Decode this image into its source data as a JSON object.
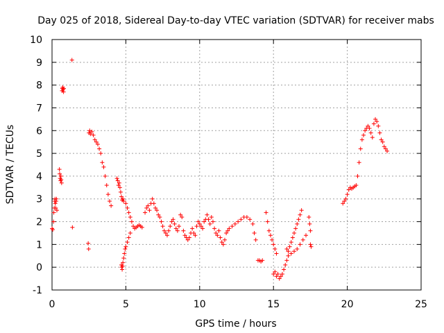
{
  "chart_data": {
    "type": "scatter",
    "title": "Day 025 of 2018, Sidereal Day-to-day VTEC variation (SDTVAR) for receiver mabs",
    "xlabel": "GPS time / hours",
    "ylabel": "SDTVAR / TECUs",
    "xlim": [
      0,
      25
    ],
    "ylim": [
      -1,
      10
    ],
    "xticks": [
      "0",
      "5",
      "10",
      "15",
      "20",
      "25"
    ],
    "yticks": [
      "-1",
      "0",
      "1",
      "2",
      "3",
      "4",
      "5",
      "6",
      "7",
      "8",
      "9",
      "10"
    ],
    "grid": true,
    "marker": "+",
    "color": "#ff0000",
    "series": [
      {
        "name": "SDTVAR",
        "points": [
          [
            0.0,
            1.7
          ],
          [
            0.05,
            1.65
          ],
          [
            0.1,
            2.0
          ],
          [
            0.12,
            2.4
          ],
          [
            0.15,
            2.6
          ],
          [
            0.18,
            2.9
          ],
          [
            0.2,
            3.0
          ],
          [
            0.22,
            2.8
          ],
          [
            0.25,
            2.6
          ],
          [
            0.28,
            2.9
          ],
          [
            0.3,
            3.0
          ],
          [
            0.33,
            2.5
          ],
          [
            0.5,
            4.3
          ],
          [
            0.52,
            4.1
          ],
          [
            0.55,
            3.9
          ],
          [
            0.58,
            3.8
          ],
          [
            0.6,
            4.0
          ],
          [
            0.62,
            3.85
          ],
          [
            0.65,
            3.7
          ],
          [
            0.68,
            7.75
          ],
          [
            0.7,
            7.85
          ],
          [
            0.72,
            7.9
          ],
          [
            0.75,
            7.8
          ],
          [
            0.78,
            7.7
          ],
          [
            0.8,
            7.85
          ],
          [
            1.35,
            9.1
          ],
          [
            1.38,
            1.75
          ],
          [
            2.45,
            1.05
          ],
          [
            2.48,
            0.8
          ],
          [
            2.5,
            5.9
          ],
          [
            2.55,
            6.0
          ],
          [
            2.6,
            5.85
          ],
          [
            2.7,
            5.95
          ],
          [
            2.8,
            5.8
          ],
          [
            2.9,
            5.6
          ],
          [
            3.0,
            5.5
          ],
          [
            3.1,
            5.4
          ],
          [
            3.2,
            5.2
          ],
          [
            3.3,
            5.0
          ],
          [
            3.4,
            4.6
          ],
          [
            3.5,
            4.4
          ],
          [
            3.6,
            4.0
          ],
          [
            3.7,
            3.6
          ],
          [
            3.8,
            3.2
          ],
          [
            3.9,
            2.9
          ],
          [
            4.0,
            2.7
          ],
          [
            4.4,
            3.9
          ],
          [
            4.45,
            3.8
          ],
          [
            4.5,
            3.6
          ],
          [
            4.55,
            3.7
          ],
          [
            4.6,
            3.5
          ],
          [
            4.65,
            3.3
          ],
          [
            4.7,
            3.1
          ],
          [
            4.75,
            2.95
          ],
          [
            4.8,
            3.0
          ],
          [
            4.85,
            2.9
          ],
          [
            4.7,
            0.1
          ],
          [
            4.72,
            0.0
          ],
          [
            4.75,
            -0.1
          ],
          [
            4.78,
            0.05
          ],
          [
            4.8,
            0.2
          ],
          [
            4.85,
            0.4
          ],
          [
            4.9,
            0.6
          ],
          [
            4.95,
            0.8
          ],
          [
            5.0,
            0.9
          ],
          [
            5.1,
            1.1
          ],
          [
            5.2,
            1.3
          ],
          [
            5.3,
            1.5
          ],
          [
            5.0,
            2.8
          ],
          [
            5.1,
            2.6
          ],
          [
            5.2,
            2.4
          ],
          [
            5.3,
            2.2
          ],
          [
            5.4,
            2.0
          ],
          [
            5.5,
            1.8
          ],
          [
            5.6,
            1.7
          ],
          [
            5.7,
            1.75
          ],
          [
            5.8,
            1.8
          ],
          [
            5.9,
            1.85
          ],
          [
            6.0,
            1.8
          ],
          [
            6.1,
            1.75
          ],
          [
            6.3,
            2.4
          ],
          [
            6.4,
            2.6
          ],
          [
            6.5,
            2.7
          ],
          [
            6.6,
            2.5
          ],
          [
            6.7,
            2.8
          ],
          [
            6.8,
            3.0
          ],
          [
            6.9,
            2.8
          ],
          [
            7.0,
            2.6
          ],
          [
            7.1,
            2.5
          ],
          [
            7.2,
            2.3
          ],
          [
            7.3,
            2.2
          ],
          [
            7.4,
            2.0
          ],
          [
            7.5,
            1.8
          ],
          [
            7.6,
            1.6
          ],
          [
            7.7,
            1.5
          ],
          [
            7.8,
            1.4
          ],
          [
            7.9,
            1.6
          ],
          [
            8.0,
            1.8
          ],
          [
            8.1,
            2.0
          ],
          [
            8.2,
            2.1
          ],
          [
            8.3,
            1.9
          ],
          [
            8.4,
            1.7
          ],
          [
            8.5,
            1.6
          ],
          [
            8.6,
            1.8
          ],
          [
            8.7,
            2.3
          ],
          [
            8.8,
            2.2
          ],
          [
            8.9,
            1.6
          ],
          [
            9.0,
            1.4
          ],
          [
            9.1,
            1.3
          ],
          [
            9.2,
            1.2
          ],
          [
            9.3,
            1.3
          ],
          [
            9.4,
            1.5
          ],
          [
            9.5,
            1.7
          ],
          [
            9.6,
            1.5
          ],
          [
            9.7,
            1.4
          ],
          [
            9.8,
            1.8
          ],
          [
            9.9,
            2.0
          ],
          [
            10.0,
            1.9
          ],
          [
            10.1,
            1.8
          ],
          [
            10.2,
            1.7
          ],
          [
            10.3,
            2.0
          ],
          [
            10.4,
            2.1
          ],
          [
            10.5,
            2.3
          ],
          [
            10.6,
            2.1
          ],
          [
            10.7,
            1.9
          ],
          [
            10.8,
            2.2
          ],
          [
            10.9,
            2.0
          ],
          [
            11.0,
            1.7
          ],
          [
            11.1,
            1.5
          ],
          [
            11.2,
            1.4
          ],
          [
            11.3,
            1.6
          ],
          [
            11.4,
            1.3
          ],
          [
            11.5,
            1.1
          ],
          [
            11.6,
            1.0
          ],
          [
            11.7,
            1.2
          ],
          [
            11.8,
            1.5
          ],
          [
            11.9,
            1.6
          ],
          [
            12.0,
            1.7
          ],
          [
            12.2,
            1.8
          ],
          [
            12.4,
            1.9
          ],
          [
            12.6,
            2.0
          ],
          [
            12.8,
            2.1
          ],
          [
            13.0,
            2.2
          ],
          [
            13.2,
            2.2
          ],
          [
            13.4,
            2.1
          ],
          [
            13.6,
            1.9
          ],
          [
            13.7,
            1.5
          ],
          [
            13.8,
            1.2
          ],
          [
            13.95,
            0.3
          ],
          [
            14.05,
            0.3
          ],
          [
            14.15,
            0.25
          ],
          [
            14.25,
            0.3
          ],
          [
            14.5,
            2.4
          ],
          [
            14.6,
            2.0
          ],
          [
            14.7,
            1.6
          ],
          [
            14.8,
            1.4
          ],
          [
            14.9,
            1.2
          ],
          [
            15.0,
            1.0
          ],
          [
            15.1,
            0.8
          ],
          [
            15.2,
            0.6
          ],
          [
            15.0,
            -0.3
          ],
          [
            15.1,
            -0.2
          ],
          [
            15.2,
            -0.4
          ],
          [
            15.3,
            -0.3
          ],
          [
            15.4,
            -0.5
          ],
          [
            15.5,
            -0.4
          ],
          [
            15.6,
            -0.3
          ],
          [
            15.7,
            -0.1
          ],
          [
            15.8,
            0.1
          ],
          [
            15.9,
            0.3
          ],
          [
            16.0,
            0.5
          ],
          [
            15.9,
            0.8
          ],
          [
            16.0,
            0.7
          ],
          [
            16.1,
            0.9
          ],
          [
            16.2,
            1.1
          ],
          [
            16.3,
            1.3
          ],
          [
            16.4,
            1.5
          ],
          [
            16.5,
            1.7
          ],
          [
            16.6,
            1.9
          ],
          [
            16.7,
            2.1
          ],
          [
            16.8,
            2.3
          ],
          [
            16.9,
            2.5
          ],
          [
            16.2,
            0.6
          ],
          [
            16.4,
            0.7
          ],
          [
            16.6,
            0.8
          ],
          [
            16.8,
            1.0
          ],
          [
            17.0,
            1.2
          ],
          [
            17.2,
            1.4
          ],
          [
            17.4,
            2.2
          ],
          [
            17.45,
            1.9
          ],
          [
            17.5,
            1.6
          ],
          [
            17.5,
            1.0
          ],
          [
            17.55,
            0.9
          ],
          [
            19.7,
            2.8
          ],
          [
            19.8,
            2.9
          ],
          [
            19.9,
            3.0
          ],
          [
            20.0,
            3.2
          ],
          [
            20.1,
            3.4
          ],
          [
            20.2,
            3.5
          ],
          [
            20.3,
            3.45
          ],
          [
            20.4,
            3.5
          ],
          [
            20.5,
            3.55
          ],
          [
            20.6,
            3.6
          ],
          [
            20.7,
            4.0
          ],
          [
            20.8,
            4.6
          ],
          [
            20.9,
            5.2
          ],
          [
            21.0,
            5.6
          ],
          [
            21.1,
            5.8
          ],
          [
            21.2,
            6.0
          ],
          [
            21.3,
            6.1
          ],
          [
            21.4,
            6.2
          ],
          [
            21.5,
            6.1
          ],
          [
            21.6,
            5.9
          ],
          [
            21.7,
            5.7
          ],
          [
            21.8,
            6.3
          ],
          [
            21.9,
            6.5
          ],
          [
            22.0,
            6.4
          ],
          [
            22.1,
            6.2
          ],
          [
            22.2,
            5.9
          ],
          [
            22.3,
            5.6
          ],
          [
            22.4,
            5.5
          ],
          [
            22.5,
            5.3
          ],
          [
            22.6,
            5.2
          ],
          [
            22.7,
            5.1
          ]
        ]
      }
    ]
  }
}
